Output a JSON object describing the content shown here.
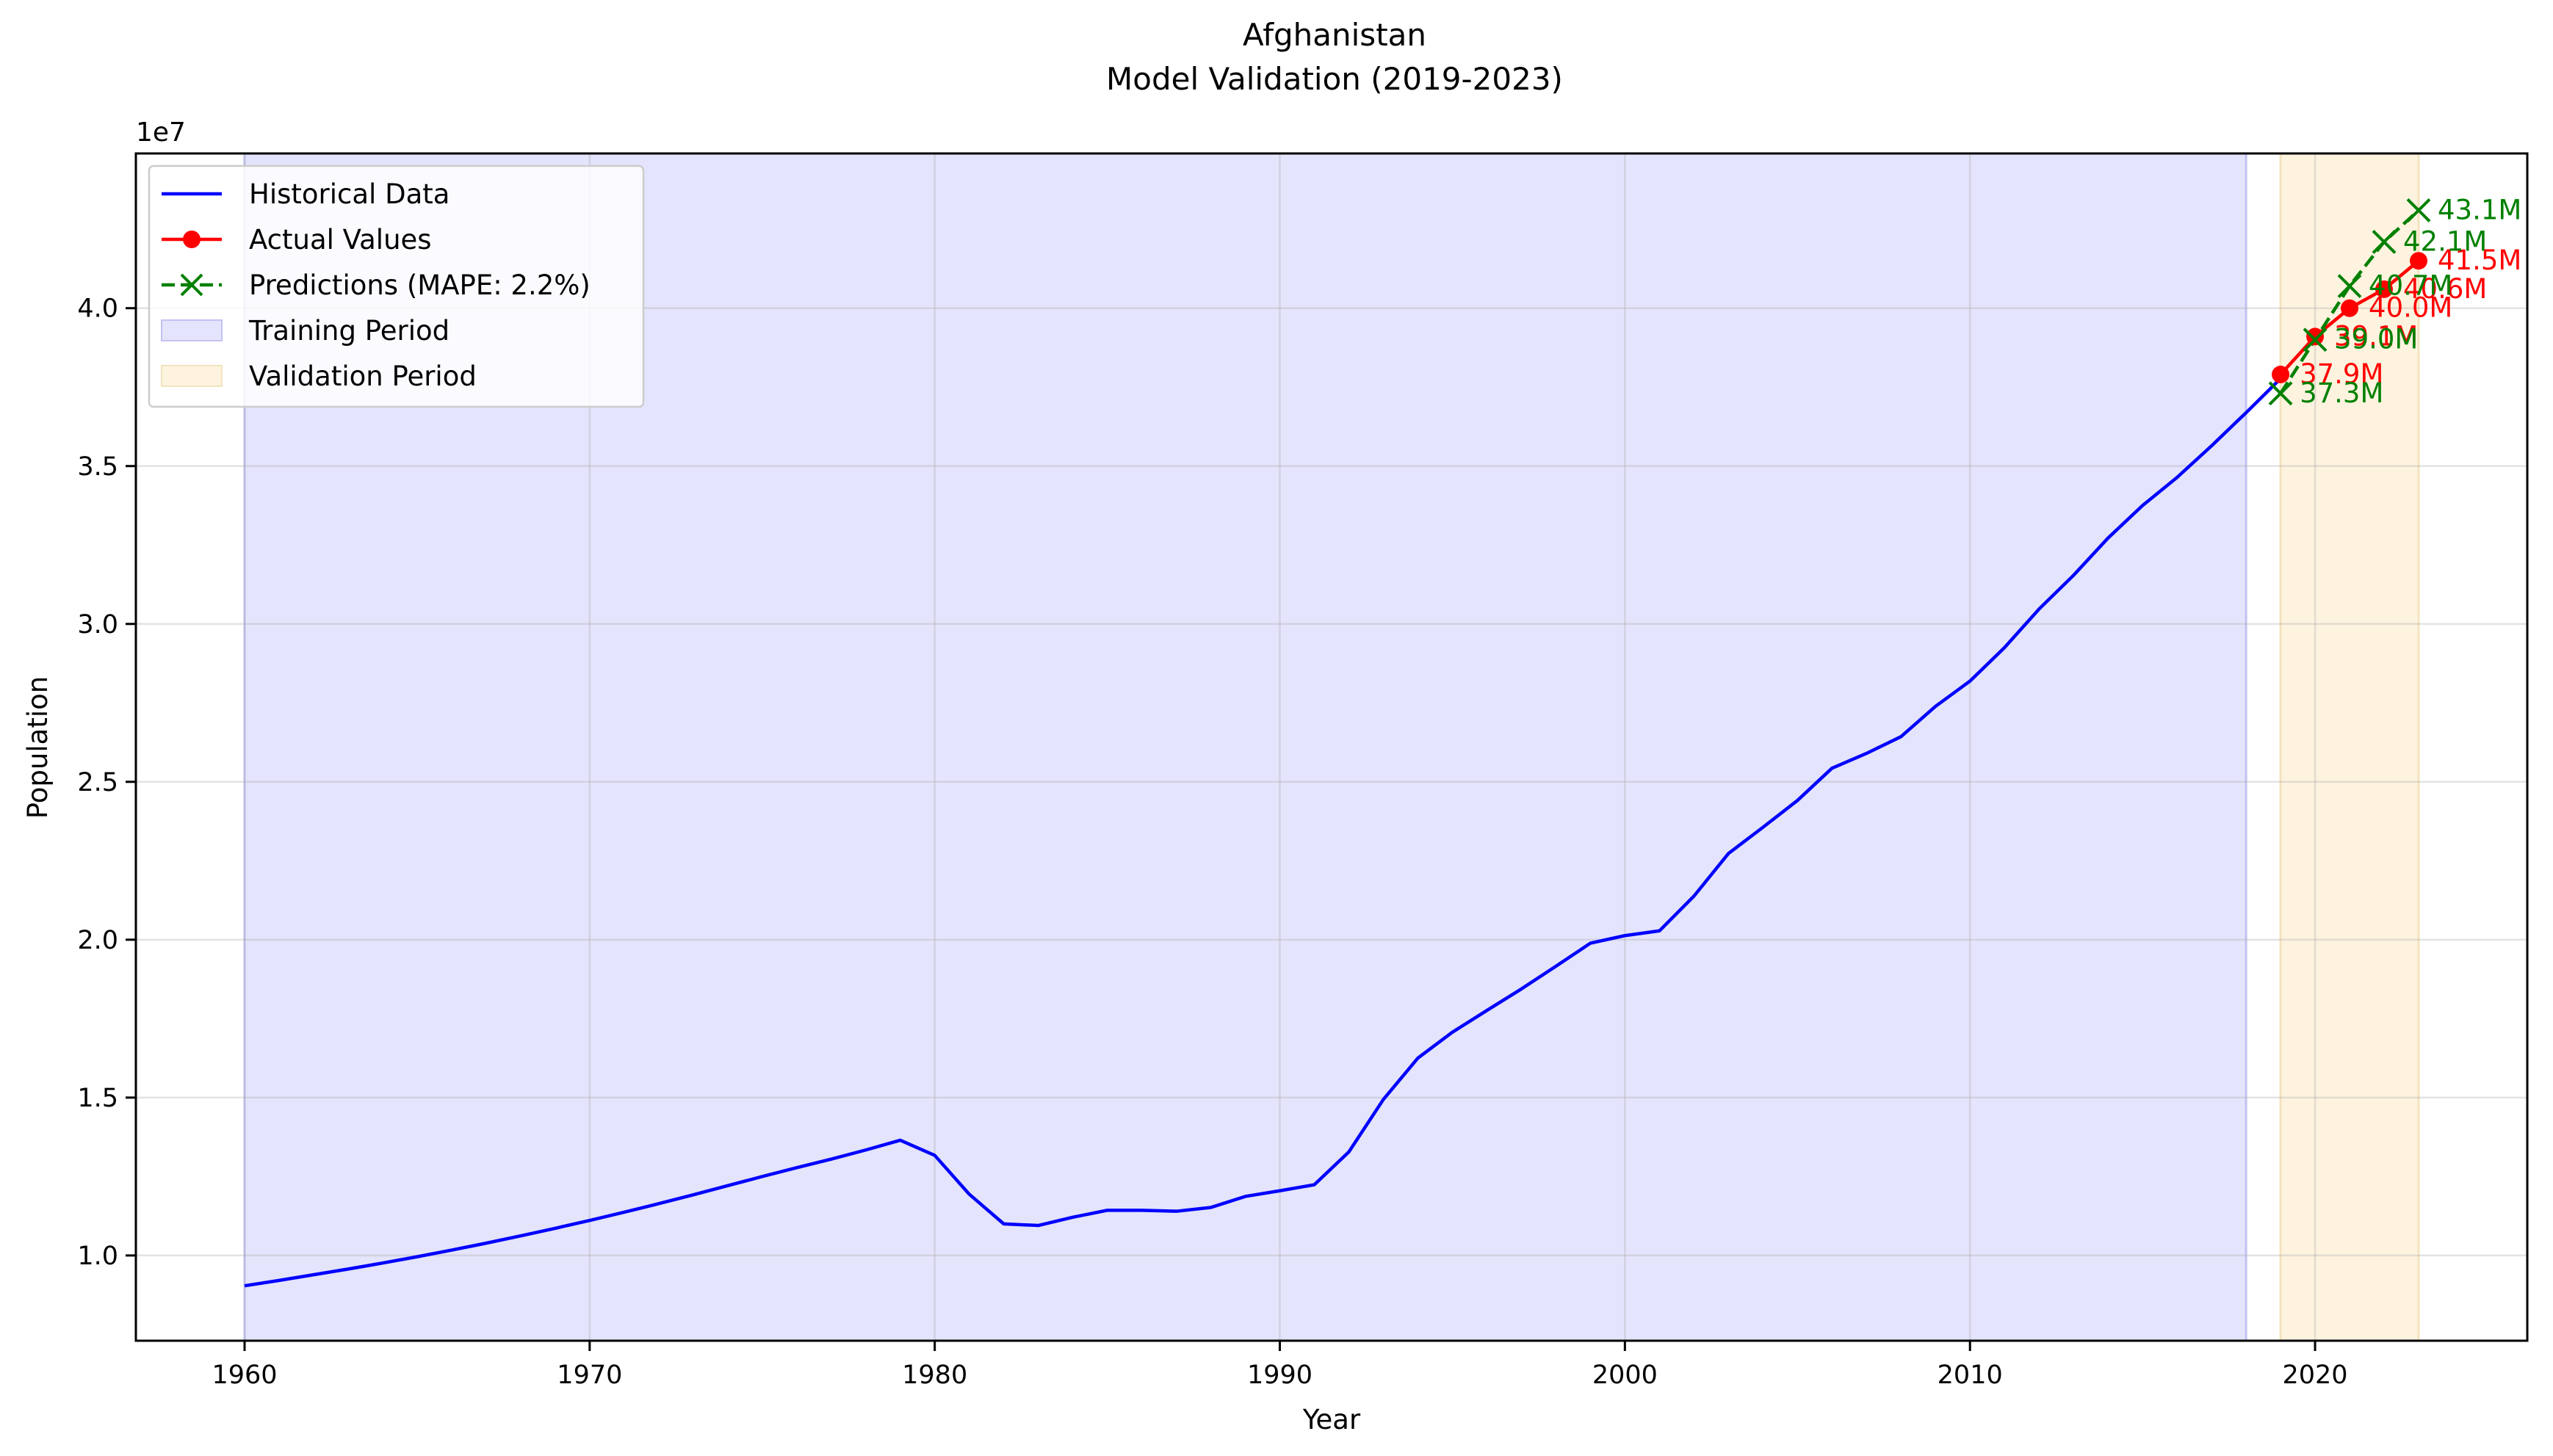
{
  "chart_data": {
    "type": "line",
    "title": "Afghanistan",
    "subtitle": "Model Validation (2019-2023)",
    "xlabel": "Year",
    "ylabel": "Population",
    "offset_label": "1e7",
    "xlim": [
      1956.85,
      2026.15
    ],
    "ylim": [
      7300000,
      44900000
    ],
    "xticks": [
      1960,
      1970,
      1980,
      1990,
      2000,
      2010,
      2020
    ],
    "yticks": [
      10000000,
      15000000,
      20000000,
      25000000,
      30000000,
      35000000,
      40000000
    ],
    "ytick_labels": [
      "1.0",
      "1.5",
      "2.0",
      "2.5",
      "3.0",
      "3.5",
      "4.0"
    ],
    "grid": true,
    "legend_position": "top-left",
    "training_period": [
      1960,
      2018
    ],
    "validation_period": [
      2019,
      2023
    ],
    "series": [
      {
        "name": "Historical Data",
        "color": "#0000ff",
        "style": "solid",
        "x": [
          1960,
          1961,
          1962,
          1963,
          1964,
          1965,
          1966,
          1967,
          1968,
          1969,
          1970,
          1971,
          1972,
          1973,
          1974,
          1975,
          1976,
          1977,
          1978,
          1979,
          1980,
          1981,
          1982,
          1983,
          1984,
          1985,
          1986,
          1987,
          1988,
          1989,
          1990,
          1991,
          1992,
          1993,
          1994,
          1995,
          1996,
          1997,
          1998,
          1999,
          2000,
          2001,
          2002,
          2003,
          2004,
          2005,
          2006,
          2007,
          2008,
          2009,
          2010,
          2011,
          2012,
          2013,
          2014,
          2015,
          2016,
          2017,
          2018,
          2019
        ],
        "values": [
          9040000,
          9210000,
          9390000,
          9570000,
          9760000,
          9960000,
          10170000,
          10390000,
          10620000,
          10860000,
          11110000,
          11370000,
          11640000,
          11920000,
          12210000,
          12500000,
          12780000,
          13050000,
          13340000,
          13650000,
          13170000,
          11940000,
          11000000,
          10950000,
          11210000,
          11430000,
          11430000,
          11400000,
          11520000,
          11870000,
          12050000,
          12240000,
          13280000,
          14940000,
          16250000,
          17070000,
          17760000,
          18440000,
          19160000,
          19890000,
          20130000,
          20280000,
          21380000,
          22730000,
          23560000,
          24410000,
          25430000,
          25900000,
          26430000,
          27390000,
          28190000,
          29250000,
          30470000,
          31540000,
          32720000,
          33750000,
          34640000,
          35640000,
          36690000,
          37770000
        ]
      },
      {
        "name": "Actual Values",
        "color": "#ff0000",
        "style": "solid",
        "marker": "circle",
        "x": [
          2019,
          2020,
          2021,
          2022,
          2023
        ],
        "values": [
          37900000,
          39100000,
          40000000,
          40600000,
          41500000
        ],
        "labels": [
          "37.9M",
          "39.1M",
          "40.0M",
          "40.6M",
          "41.5M"
        ]
      },
      {
        "name": "Predictions (MAPE: 2.2%)",
        "color": "#008000",
        "style": "dashed",
        "marker": "x",
        "x": [
          2019,
          2020,
          2021,
          2022,
          2023
        ],
        "values": [
          37300000,
          39000000,
          40700000,
          42100000,
          43100000
        ],
        "labels": [
          "37.3M",
          "39.0M",
          "40.7M",
          "42.1M",
          "43.1M"
        ]
      }
    ],
    "legend": [
      {
        "label": "Historical Data",
        "kind": "line",
        "color": "#0000ff"
      },
      {
        "label": "Actual Values",
        "kind": "line-circle",
        "color": "#ff0000"
      },
      {
        "label": "Predictions (MAPE: 2.2%)",
        "kind": "dashed-x",
        "color": "#008000"
      },
      {
        "label": "Training Period",
        "kind": "patch",
        "color": "#e4e4fc"
      },
      {
        "label": "Validation Period",
        "kind": "patch",
        "color": "#fdf3df"
      }
    ]
  }
}
